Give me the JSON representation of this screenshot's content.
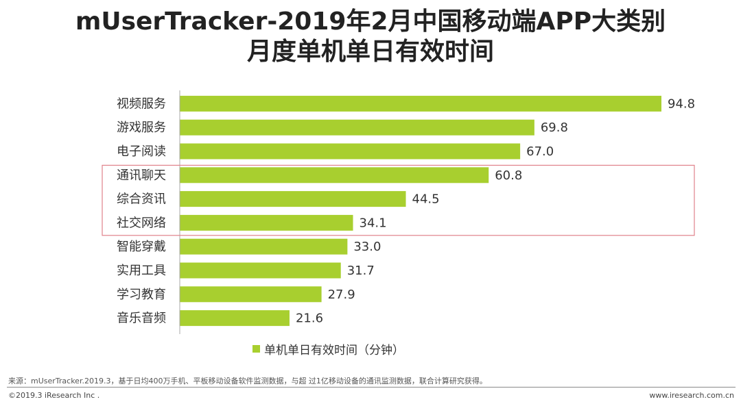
{
  "title_line1": "mUserTracker-2019年2月中国移动端APP大类别",
  "title_line2": "月度单机单日有效时间",
  "legend_label": "单机单日有效时间（分钟）",
  "source_note": "来源：mUserTracker.2019.3，基于日均400万手机、平板移动设备软件监测数据，与超 过1亿移动设备的通讯监测数据，联合计算研究获得。",
  "copyright": "©2019.3 iResearch Inc .",
  "website": "www.iresearch.com.cn",
  "colors": {
    "bar": "#a8cf2f",
    "highlight_box": "#e0818a",
    "axis": "#aaaaaa"
  },
  "chart_data": {
    "type": "bar",
    "orientation": "horizontal",
    "title": "mUserTracker-2019年2月中国移动端APP大类别月度单机单日有效时间",
    "categories": [
      "视频服务",
      "游戏服务",
      "电子阅读",
      "通讯聊天",
      "综合资讯",
      "社交网络",
      "智能穿戴",
      "实用工具",
      "学习教育",
      "音乐音频"
    ],
    "series": [
      {
        "name": "单机单日有效时间（分钟）",
        "values": [
          94.8,
          69.8,
          67.0,
          60.8,
          44.5,
          34.1,
          33.0,
          31.7,
          27.9,
          21.6
        ]
      }
    ],
    "value_labels": [
      "94.8",
      "69.8",
      "67.0",
      "60.8",
      "44.5",
      "34.1",
      "33.0",
      "31.7",
      "27.9",
      "21.6"
    ],
    "highlighted_categories": [
      "通讯聊天",
      "综合资讯",
      "社交网络"
    ],
    "legend_position": "bottom",
    "grid": false
  }
}
